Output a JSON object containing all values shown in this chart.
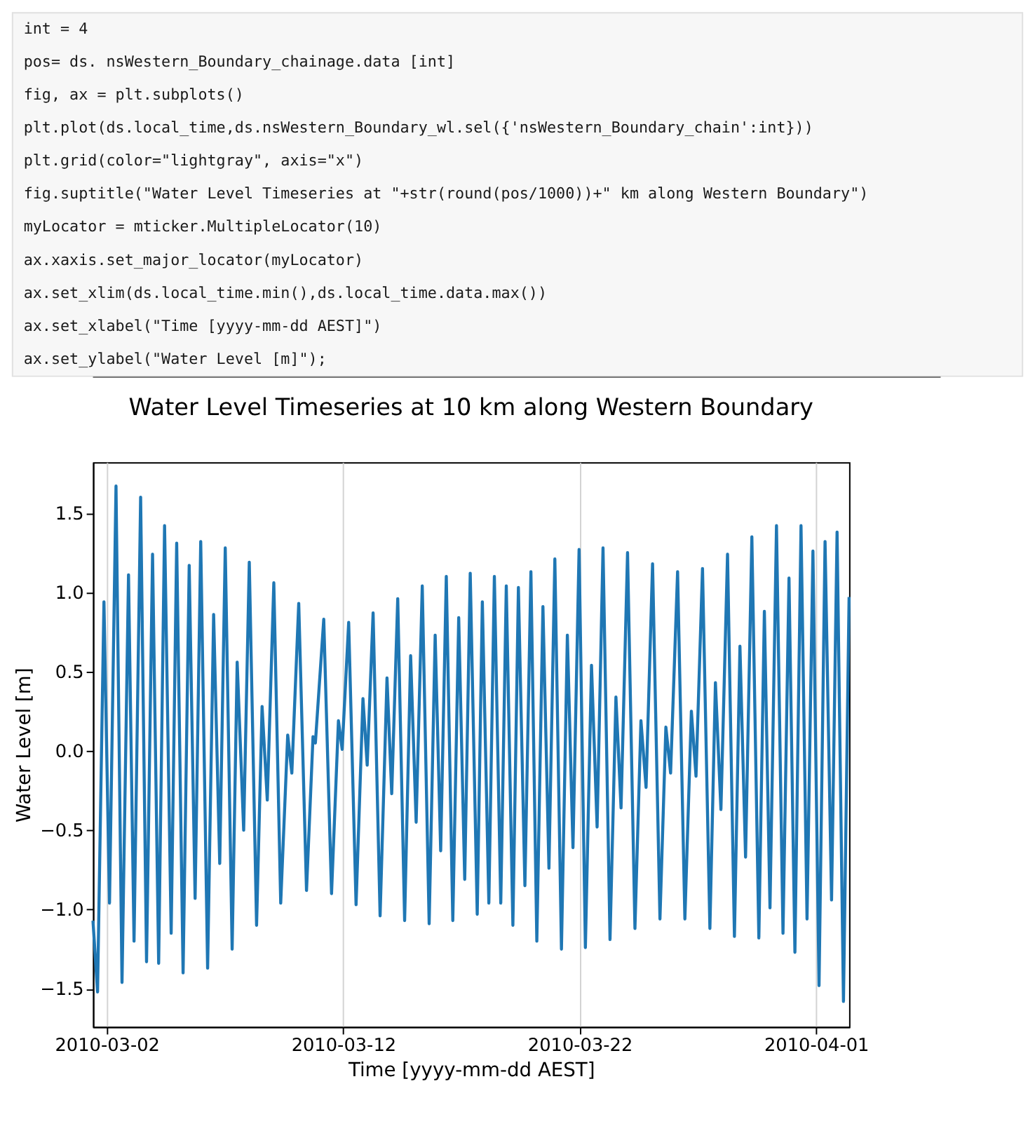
{
  "chart_data": {
    "type": "line",
    "title": "Water Level Timeseries at 10 km along Western Boundary",
    "xlabel": "Time [yyyy-mm-dd AEST]",
    "ylabel": "Water Level [m]",
    "annotations": [
      "int = 4",
      "pos= ds. nsWestern_Boundary_chainage.data [int]",
      "fig, ax = plt.subplots()",
      "plt.plot(ds.local_time,ds.nsWestern_Boundary_wl.sel({'nsWestern_Boundary_chain':int}))",
      "plt.grid(color=\"lightgray\", axis=\"x\")",
      "fig.suptitle(\"Water Level Timeseries at \"+str(round(pos/1000))+\" km along Western Boundary\")",
      "myLocator = mticker.MultipleLocator(10)",
      "ax.xaxis.set_major_locator(myLocator)",
      "ax.set_xlim(ds.local_time.min(),ds.local_time.data.max())",
      "ax.set_xlabel(\"Time [yyyy-mm-dd AEST]\")",
      "ax.set_ylabel(\"Water Level [m]\");"
    ],
    "x": [
      "2010-03-01T10:00",
      "2010-03-01T14:40",
      "2010-03-01T21:10",
      "2010-03-02T02:48",
      "2010-03-02T09:24",
      "2010-03-02T15:30",
      "2010-03-02T22:06",
      "2010-03-03T03:42",
      "2010-03-03T10:24",
      "2010-03-03T16:24",
      "2010-03-03T22:30",
      "2010-03-04T04:42",
      "2010-03-04T10:42",
      "2010-03-04T17:24",
      "2010-03-04T23:00",
      "2010-03-05T05:30",
      "2010-03-05T11:42",
      "2010-03-05T17:42",
      "2010-03-05T23:24",
      "2010-03-06T06:24",
      "2010-03-06T12:30",
      "2010-03-06T18:42",
      "2010-03-07T00:18",
      "2010-03-07T07:18",
      "2010-03-07T12:24",
      "2010-03-07T19:00",
      "2010-03-08T00:42",
      "2010-03-08T08:06",
      "2010-03-08T13:42",
      "2010-03-08T18:58",
      "2010-03-09T01:36",
      "2010-03-09T08:36",
      "2010-03-09T15:42",
      "2010-03-09T19:54",
      "2010-03-10T02:54",
      "2010-03-10T10:48",
      "2010-03-10T17:24",
      "2010-03-10T19:48",
      "2010-03-11T04:18",
      "2010-03-11T12:12",
      "2010-03-11T19:12",
      "2010-03-11T23:00",
      "2010-03-12T05:36",
      "2010-03-12T13:06",
      "2010-03-12T20:06",
      "2010-03-13T00:24",
      "2010-03-13T06:24",
      "2010-03-13T13:30",
      "2010-03-13T20:30",
      "2010-03-14T01:18",
      "2010-03-14T07:24",
      "2010-03-14T14:24",
      "2010-03-14T20:30",
      "2010-03-15T02:06",
      "2010-03-15T08:18",
      "2010-03-15T15:18",
      "2010-03-15T21:24",
      "2010-03-16T03:00",
      "2010-03-16T08:42",
      "2010-03-16T15:18",
      "2010-03-16T21:18",
      "2010-03-17T03:24",
      "2010-03-17T09:00",
      "2010-03-17T16:06",
      "2010-03-17T21:18",
      "2010-03-18T03:54",
      "2010-03-18T09:30",
      "2010-03-18T16:00",
      "2010-03-18T21:36",
      "2010-03-19T04:18",
      "2010-03-19T09:54",
      "2010-03-19T16:30",
      "2010-03-19T22:36",
      "2010-03-20T04:36",
      "2010-03-20T10:48",
      "2010-03-20T16:54",
      "2010-03-20T22:54",
      "2010-03-21T05:36",
      "2010-03-21T11:36",
      "2010-03-21T17:18",
      "2010-03-21T23:30",
      "2010-03-22T05:54",
      "2010-03-22T12:06",
      "2010-03-22T17:48",
      "2010-03-22T23:48",
      "2010-03-23T06:54",
      "2010-03-23T12:54",
      "2010-03-23T18:06",
      "2010-03-24T00:42",
      "2010-03-24T08:12",
      "2010-03-24T14:18",
      "2010-03-24T19:30",
      "2010-03-25T02:06",
      "2010-03-25T09:36",
      "2010-03-25T15:36",
      "2010-03-25T20:24",
      "2010-03-26T03:30",
      "2010-03-26T10:54",
      "2010-03-26T17:30",
      "2010-03-26T22:12",
      "2010-03-27T04:48",
      "2010-03-27T12:18",
      "2010-03-27T17:54",
      "2010-03-27T23:30",
      "2010-03-28T06:12",
      "2010-03-28T13:12",
      "2010-03-28T18:48",
      "2010-03-29T00:30",
      "2010-03-29T06:54",
      "2010-03-29T14:00",
      "2010-03-29T19:36",
      "2010-03-30T01:18",
      "2010-03-30T07:54",
      "2010-03-30T14:30",
      "2010-03-30T20:36",
      "2010-03-31T02:36",
      "2010-03-31T08:48",
      "2010-03-31T14:54",
      "2010-03-31T20:54",
      "2010-04-01T03:06",
      "2010-04-01T09:12",
      "2010-04-01T15:48",
      "2010-04-01T21:24",
      "2010-04-02T03:54",
      "2010-04-02T09:36"
    ],
    "series": [
      {
        "color": "#1f77b4",
        "values": [
          -1.07,
          -1.52,
          0.94,
          -0.96,
          1.67,
          -1.46,
          1.11,
          -1.2,
          1.6,
          -1.33,
          1.24,
          -1.34,
          1.42,
          -1.15,
          1.31,
          -1.4,
          1.17,
          -0.93,
          1.32,
          -1.37,
          0.86,
          -0.71,
          1.28,
          -1.25,
          0.56,
          -0.5,
          1.19,
          -1.1,
          0.28,
          -0.31,
          1.06,
          -0.96,
          0.1,
          -0.14,
          0.93,
          -0.88,
          0.09,
          0.05,
          0.83,
          -0.9,
          0.19,
          0.01,
          0.81,
          -0.97,
          0.33,
          -0.09,
          0.87,
          -1.04,
          0.46,
          -0.27,
          0.96,
          -1.07,
          0.6,
          -0.45,
          1.04,
          -1.09,
          0.73,
          -0.63,
          1.1,
          -1.07,
          0.84,
          -0.81,
          1.12,
          -1.03,
          0.94,
          -0.96,
          1.1,
          -0.96,
          1.04,
          -1.1,
          1.03,
          -0.85,
          1.13,
          -1.2,
          0.91,
          -0.74,
          1.21,
          -1.25,
          0.73,
          -0.61,
          1.27,
          -1.24,
          0.54,
          -0.48,
          1.28,
          -1.19,
          0.34,
          -0.36,
          1.25,
          -1.12,
          0.19,
          -0.23,
          1.18,
          -1.06,
          0.15,
          -0.14,
          1.13,
          -1.06,
          0.25,
          -0.16,
          1.15,
          -1.12,
          0.43,
          -0.37,
          1.24,
          -1.17,
          0.66,
          -0.67,
          1.35,
          -1.18,
          0.88,
          -0.99,
          1.42,
          -1.15,
          1.09,
          -1.27,
          1.42,
          -1.06,
          1.26,
          -1.48,
          1.32,
          -0.94,
          1.38,
          -1.58,
          0.97
        ]
      }
    ],
    "xlim": [
      "2010-03-01T10:00",
      "2010-04-02T09:36"
    ],
    "xticks": [
      "2010-03-02",
      "2010-03-12",
      "2010-03-22",
      "2010-04-01"
    ],
    "ylim": [
      -1.74,
      1.82
    ],
    "yticks": [
      {
        "value": -1.5,
        "label": "−1.5"
      },
      {
        "value": -1.0,
        "label": "−1.0"
      },
      {
        "value": -0.5,
        "label": "−0.5"
      },
      {
        "value": 0,
        "label": "0.0"
      },
      {
        "value": 0.5,
        "label": "0.5"
      },
      {
        "value": 1.0,
        "label": "1.0"
      },
      {
        "value": 1.5,
        "label": "1.5"
      }
    ],
    "grid": "x",
    "line_style": "solid"
  }
}
